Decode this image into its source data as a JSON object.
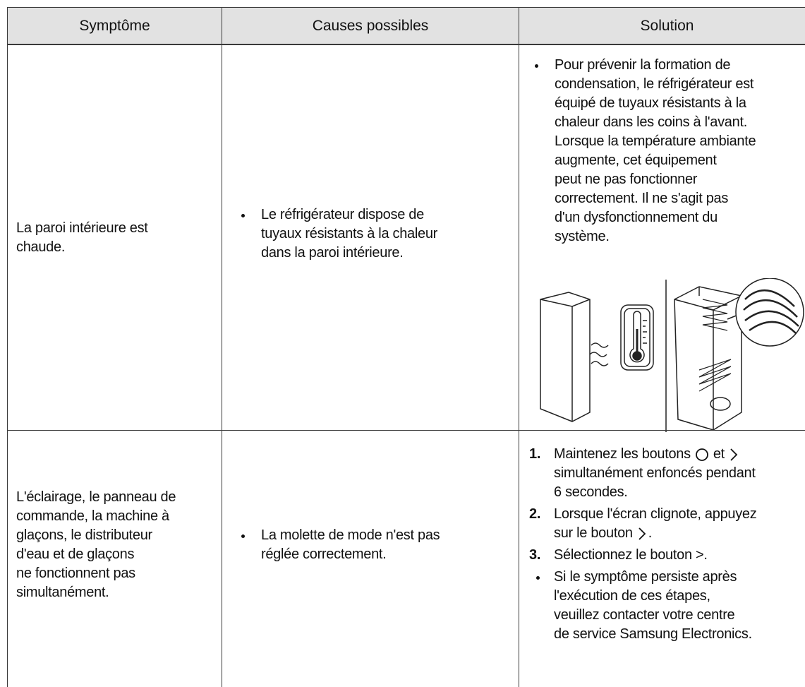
{
  "table": {
    "headers": [
      "Symptôme",
      "Causes possibles",
      "Solution"
    ],
    "rows": [
      {
        "symptom": [
          "La paroi intérieure est",
          "chaude."
        ],
        "cause": [
          "Le réfrigérateur dispose de",
          "tuyaux résistants à la chaleur",
          "dans la paroi intérieure."
        ],
        "solution": [
          "Pour prévenir la formation de",
          "condensation, le réfrigérateur est",
          "équipé de tuyaux résistants à la",
          "chaleur dans les coins à l'avant.",
          "Lorsque la température ambiante",
          "augmente, cet équipement",
          "peut ne pas fonctionner",
          "correctement. Il ne s'agit pas",
          "d'un dysfonctionnement du",
          "système."
        ]
      },
      {
        "symptom": [
          "L'éclairage, le panneau de",
          "commande, la machine à",
          "glaçons, le distributeur",
          "d'eau et de glaçons",
          "ne fonctionnent pas",
          "simultanément."
        ],
        "cause": [
          "La molette de mode n'est pas",
          "réglée correctement."
        ],
        "steps": [
          {
            "number": "1.",
            "lines": [
              "Maintenez les boutons",
              "et",
              "simultanément enfoncés pendant",
              "6 secondes."
            ]
          },
          {
            "number": "2.",
            "lines": [
              "Lorsque l'écran clignote, appuyez",
              "sur le bouton",
              "."
            ]
          },
          {
            "number": "3.",
            "lines": [
              "Sélectionnez le bouton >."
            ]
          }
        ],
        "note": [
          "Si le symptôme persiste après",
          "l'exécution de ces étapes,",
          "veuillez contacter votre centre",
          "de service Samsung Electronics."
        ]
      }
    ]
  }
}
